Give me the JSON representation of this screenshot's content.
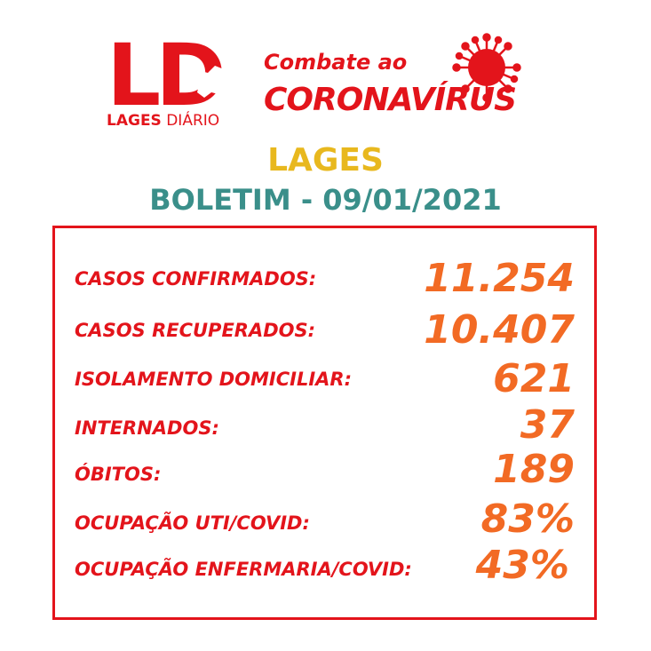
{
  "logo": {
    "letters": "LD",
    "caption_bold": "LAGES",
    "caption_light": "DIÁRIO"
  },
  "campaign": {
    "line1": "Combate ao",
    "line2": "CORONAVÍRUS",
    "icon": "coronavirus-icon"
  },
  "city": "LAGES",
  "bulletin": "BOLETIM - 09/01/2021",
  "stats": [
    {
      "label": "CASOS CONFIRMADOS:",
      "value": "11.254"
    },
    {
      "label": "CASOS RECUPERADOS:",
      "value": "10.407"
    },
    {
      "label": "ISOLAMENTO DOMICILIAR:",
      "value": "621"
    },
    {
      "label": "INTERNADOS:",
      "value": "37"
    },
    {
      "label": "ÓBITOS:",
      "value": "189"
    },
    {
      "label": "OCUPAÇÃO UTI/COVID:",
      "value": "83%"
    },
    {
      "label": "OCUPAÇÃO ENFERMARIA/COVID:",
      "value": "43%"
    }
  ],
  "colors": {
    "brand_red": "#e3141b",
    "value_orange": "#f26a24",
    "city_yellow": "#e8b81e",
    "bulletin_teal": "#3a8f8a"
  }
}
